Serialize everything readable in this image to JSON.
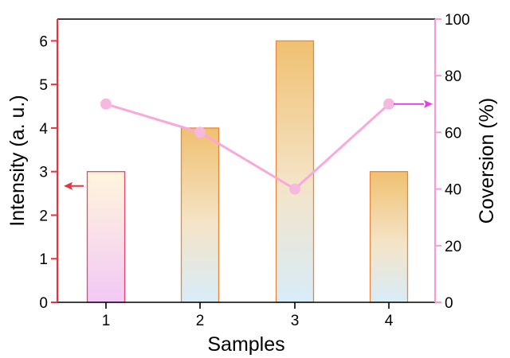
{
  "chart_data": {
    "type": "bar",
    "xlabel": "Samples",
    "categories": [
      "1",
      "2",
      "3",
      "4"
    ],
    "series": [
      {
        "name": "Intensity",
        "axis": "left",
        "type": "bar",
        "values": [
          3,
          4,
          6,
          3
        ],
        "ylabel": "Intensity (a. u.)",
        "ylim": [
          0,
          6.5
        ],
        "yticks": [
          "0",
          "1",
          "2",
          "3",
          "4",
          "5",
          "6"
        ],
        "indicator_arrow": "left-pointing arrow near bar 1"
      },
      {
        "name": "Coversion",
        "axis": "right",
        "type": "line",
        "values": [
          70,
          60,
          40,
          70
        ],
        "ylabel": "Coversion (%)",
        "ylim": [
          0,
          100
        ],
        "yticks": [
          "0",
          "20",
          "40",
          "60",
          "80",
          "100"
        ],
        "indicator_arrow": "right-pointing arrow near point 4"
      }
    ],
    "colors": {
      "left_axis": "#e8333f",
      "right_axis": "#f79ad6",
      "line": "#f9a8dc",
      "marker": "#f7b8e0",
      "bar_edge": "#e8873a",
      "bar1_edge": "#ee4466",
      "bar_top": "#f0c070",
      "bar_bottom": "#d8ecf8",
      "bar1_top": "#fff6dc",
      "bar1_bottom": "#f2c8f6",
      "left_arrow": "#e8333f",
      "right_arrow": "#e040e6"
    }
  }
}
